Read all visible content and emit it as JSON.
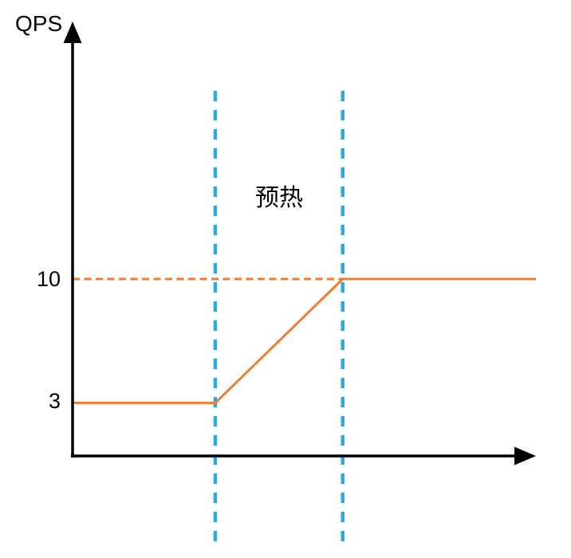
{
  "chart_data": {
    "type": "line",
    "title": "",
    "xlabel": "",
    "ylabel": "QPS",
    "xlim": [
      0,
      10
    ],
    "ylim": [
      0,
      24.5
    ],
    "yticks": [
      3,
      10
    ],
    "xticks": [],
    "grid": false,
    "legend": false,
    "axis_color": "#000000",
    "series": [
      {
        "name": "QPS",
        "color": "#ED7D31",
        "style": "solid",
        "points": [
          [
            0,
            3
          ],
          [
            3.08,
            3
          ],
          [
            5.83,
            10
          ],
          [
            10,
            10
          ]
        ]
      }
    ],
    "annotations": [
      {
        "kind": "text",
        "text": "预热",
        "x": 4.45,
        "y": 14.6
      },
      {
        "kind": "vline",
        "x": 3.08,
        "style": "dashed",
        "color": "#29ABE2"
      },
      {
        "kind": "vline",
        "x": 5.83,
        "style": "dashed",
        "color": "#29ABE2"
      },
      {
        "kind": "hline",
        "y": 10,
        "x_start": 0,
        "x_end": 5.83,
        "style": "dashed",
        "color": "#ED7D31"
      }
    ]
  }
}
